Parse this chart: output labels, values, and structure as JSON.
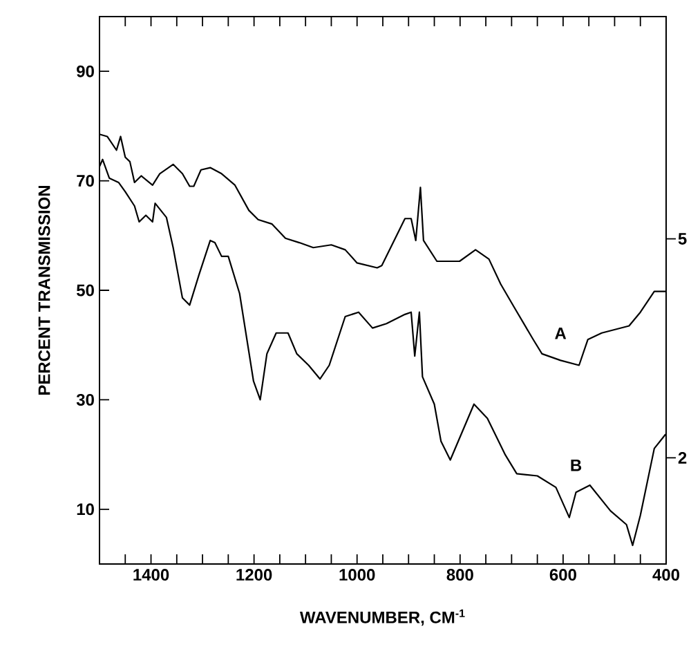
{
  "chart_data": {
    "type": "line",
    "xlabel": "WAVENUMBER, CM$^{-1}$",
    "ylabel": "PERCENT TRANSMISSION",
    "xlim": [
      1500,
      400
    ],
    "ylim": [
      0,
      100
    ],
    "xticks": [
      {
        "value": 1450,
        "label": null
      },
      1400,
      {
        "value": 1350,
        "label": null
      },
      1200,
      {
        "value": 1300,
        "label": null
      },
      {
        "value": 1250,
        "label": null
      },
      {
        "value": 1150,
        "label": null
      },
      {
        "value": 1100,
        "label": null
      },
      {
        "value": 1050,
        "label": null
      },
      1000,
      {
        "value": 950,
        "label": null
      },
      {
        "value": 900,
        "label": null
      },
      {
        "value": 850,
        "label": null
      },
      800,
      {
        "value": 750,
        "label": null
      },
      {
        "value": 700,
        "label": null
      },
      {
        "value": 650,
        "label": null
      },
      600,
      {
        "value": 550,
        "label": null
      },
      {
        "value": 500,
        "label": null
      },
      {
        "value": 450,
        "label": null
      },
      400
    ],
    "yticks": [
      10,
      30,
      50,
      70,
      90
    ],
    "annotations": [
      "5",
      "2"
    ],
    "grid": false,
    "legend": false,
    "marker": "none",
    "line_style": "solid",
    "series": [
      {
        "name": "A",
        "color": "#000000",
        "x": [
          1500,
          1485,
          1467,
          1459,
          1450,
          1441,
          1432,
          1419,
          1397,
          1383,
          1357,
          1339,
          1325,
          1317,
          1303,
          1285,
          1263,
          1237,
          1210,
          1192,
          1165,
          1139,
          1112,
          1085,
          1050,
          1023,
          1000,
          961,
          952,
          907,
          895,
          886,
          877,
          871,
          845,
          801,
          770,
          744,
          721,
          695,
          658,
          641,
          605,
          569,
          552,
          525,
          472,
          450,
          423,
          401
        ],
        "values": [
          78.5,
          78.1,
          75.6,
          78.1,
          74.3,
          73.5,
          69.7,
          70.9,
          69.2,
          71.3,
          73.0,
          71.3,
          69.0,
          69.0,
          72.0,
          72.4,
          71.3,
          69.2,
          64.6,
          62.9,
          62.1,
          59.5,
          58.7,
          57.8,
          58.3,
          57.4,
          55.0,
          54.1,
          54.5,
          63.1,
          63.1,
          59.1,
          68.8,
          59.1,
          55.3,
          55.3,
          57.4,
          55.7,
          51.1,
          46.9,
          41.0,
          38.4,
          37.2,
          36.3,
          41.0,
          42.2,
          43.5,
          46.0,
          49.8,
          49.8
        ]
      },
      {
        "name": "B",
        "color": "#000000",
        "x": [
          1500,
          1494,
          1481,
          1463,
          1450,
          1432,
          1423,
          1410,
          1397,
          1392,
          1370,
          1357,
          1339,
          1325,
          1307,
          1285,
          1276,
          1263,
          1250,
          1228,
          1201,
          1188,
          1175,
          1157,
          1134,
          1117,
          1094,
          1072,
          1054,
          1023,
          997,
          970,
          943,
          907,
          895,
          888,
          879,
          873,
          850,
          837,
          819,
          773,
          747,
          712,
          690,
          650,
          614,
          588,
          575,
          548,
          508,
          477,
          465,
          450,
          423,
          401
        ],
        "values": [
          72.6,
          73.9,
          70.5,
          69.7,
          68.0,
          65.4,
          62.5,
          63.7,
          62.5,
          65.9,
          63.3,
          57.8,
          48.6,
          47.3,
          52.8,
          59.1,
          58.7,
          56.2,
          56.2,
          49.4,
          33.4,
          30.0,
          38.4,
          42.2,
          42.2,
          38.4,
          36.3,
          33.8,
          36.3,
          45.2,
          46.0,
          43.1,
          43.9,
          45.6,
          46.0,
          38.0,
          46.0,
          34.2,
          29.2,
          22.4,
          19.0,
          29.2,
          26.6,
          19.9,
          16.5,
          16.1,
          14.0,
          8.5,
          13.1,
          14.4,
          9.7,
          7.2,
          3.4,
          8.9,
          21.1,
          23.7
        ]
      }
    ]
  }
}
